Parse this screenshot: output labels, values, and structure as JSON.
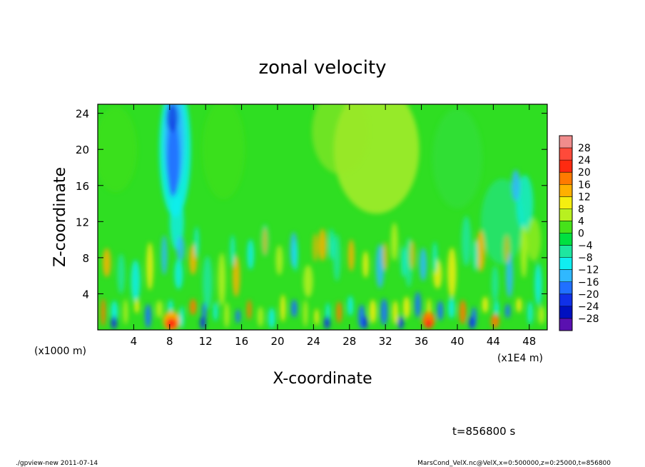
{
  "chart_data": {
    "type": "heatmap",
    "title": "zonal velocity",
    "xlabel": "X-coordinate",
    "ylabel": "Z-coordinate",
    "x_unit_label": "(x1E4 m)",
    "y_unit_label": "(x1000 m)",
    "xlim": [
      0,
      50
    ],
    "ylim": [
      0,
      25
    ],
    "x_ticks": [
      "4",
      "8",
      "12",
      "16",
      "20",
      "24",
      "28",
      "32",
      "36",
      "40",
      "44",
      "48"
    ],
    "y_ticks": [
      "4",
      "8",
      "12",
      "16",
      "20",
      "24"
    ],
    "colorbar": {
      "levels": [
        "28",
        "24",
        "20",
        "16",
        "12",
        "8",
        "4",
        "0",
        "−4",
        "−8",
        "−12",
        "−16",
        "−20",
        "−24",
        "−28"
      ],
      "colors": [
        "#f08c8c",
        "#ff4a3a",
        "#ff2a10",
        "#ff7a00",
        "#ffb000",
        "#f5ee10",
        "#b8f020",
        "#46e21a",
        "#00e040",
        "#1ee6a0",
        "#10eef0",
        "#30b8ff",
        "#2070ff",
        "#1030e8",
        "#0010c0",
        "#5a10b0"
      ]
    },
    "features": [
      {
        "x": 8.5,
        "z": 18,
        "value": -16,
        "note": "strong negative jet column"
      },
      {
        "x": 8.2,
        "z": 1.2,
        "value": 20,
        "note": "surface positive maximum"
      },
      {
        "x": 36.8,
        "z": 1.2,
        "value": 20,
        "note": "surface positive maximum"
      },
      {
        "x": 31,
        "z": 20,
        "value": 8,
        "note": "upper positive region"
      },
      {
        "x": 46.5,
        "z": 16,
        "value": -8,
        "note": "upper negative column"
      }
    ]
  },
  "annotations": {
    "time": "t=856800 s",
    "footer_left": "./gpview-new   2011-07-14",
    "footer_right": "MarsCond_VelX.nc@VelX,x=0:500000,z=0:25000,t=856800"
  }
}
